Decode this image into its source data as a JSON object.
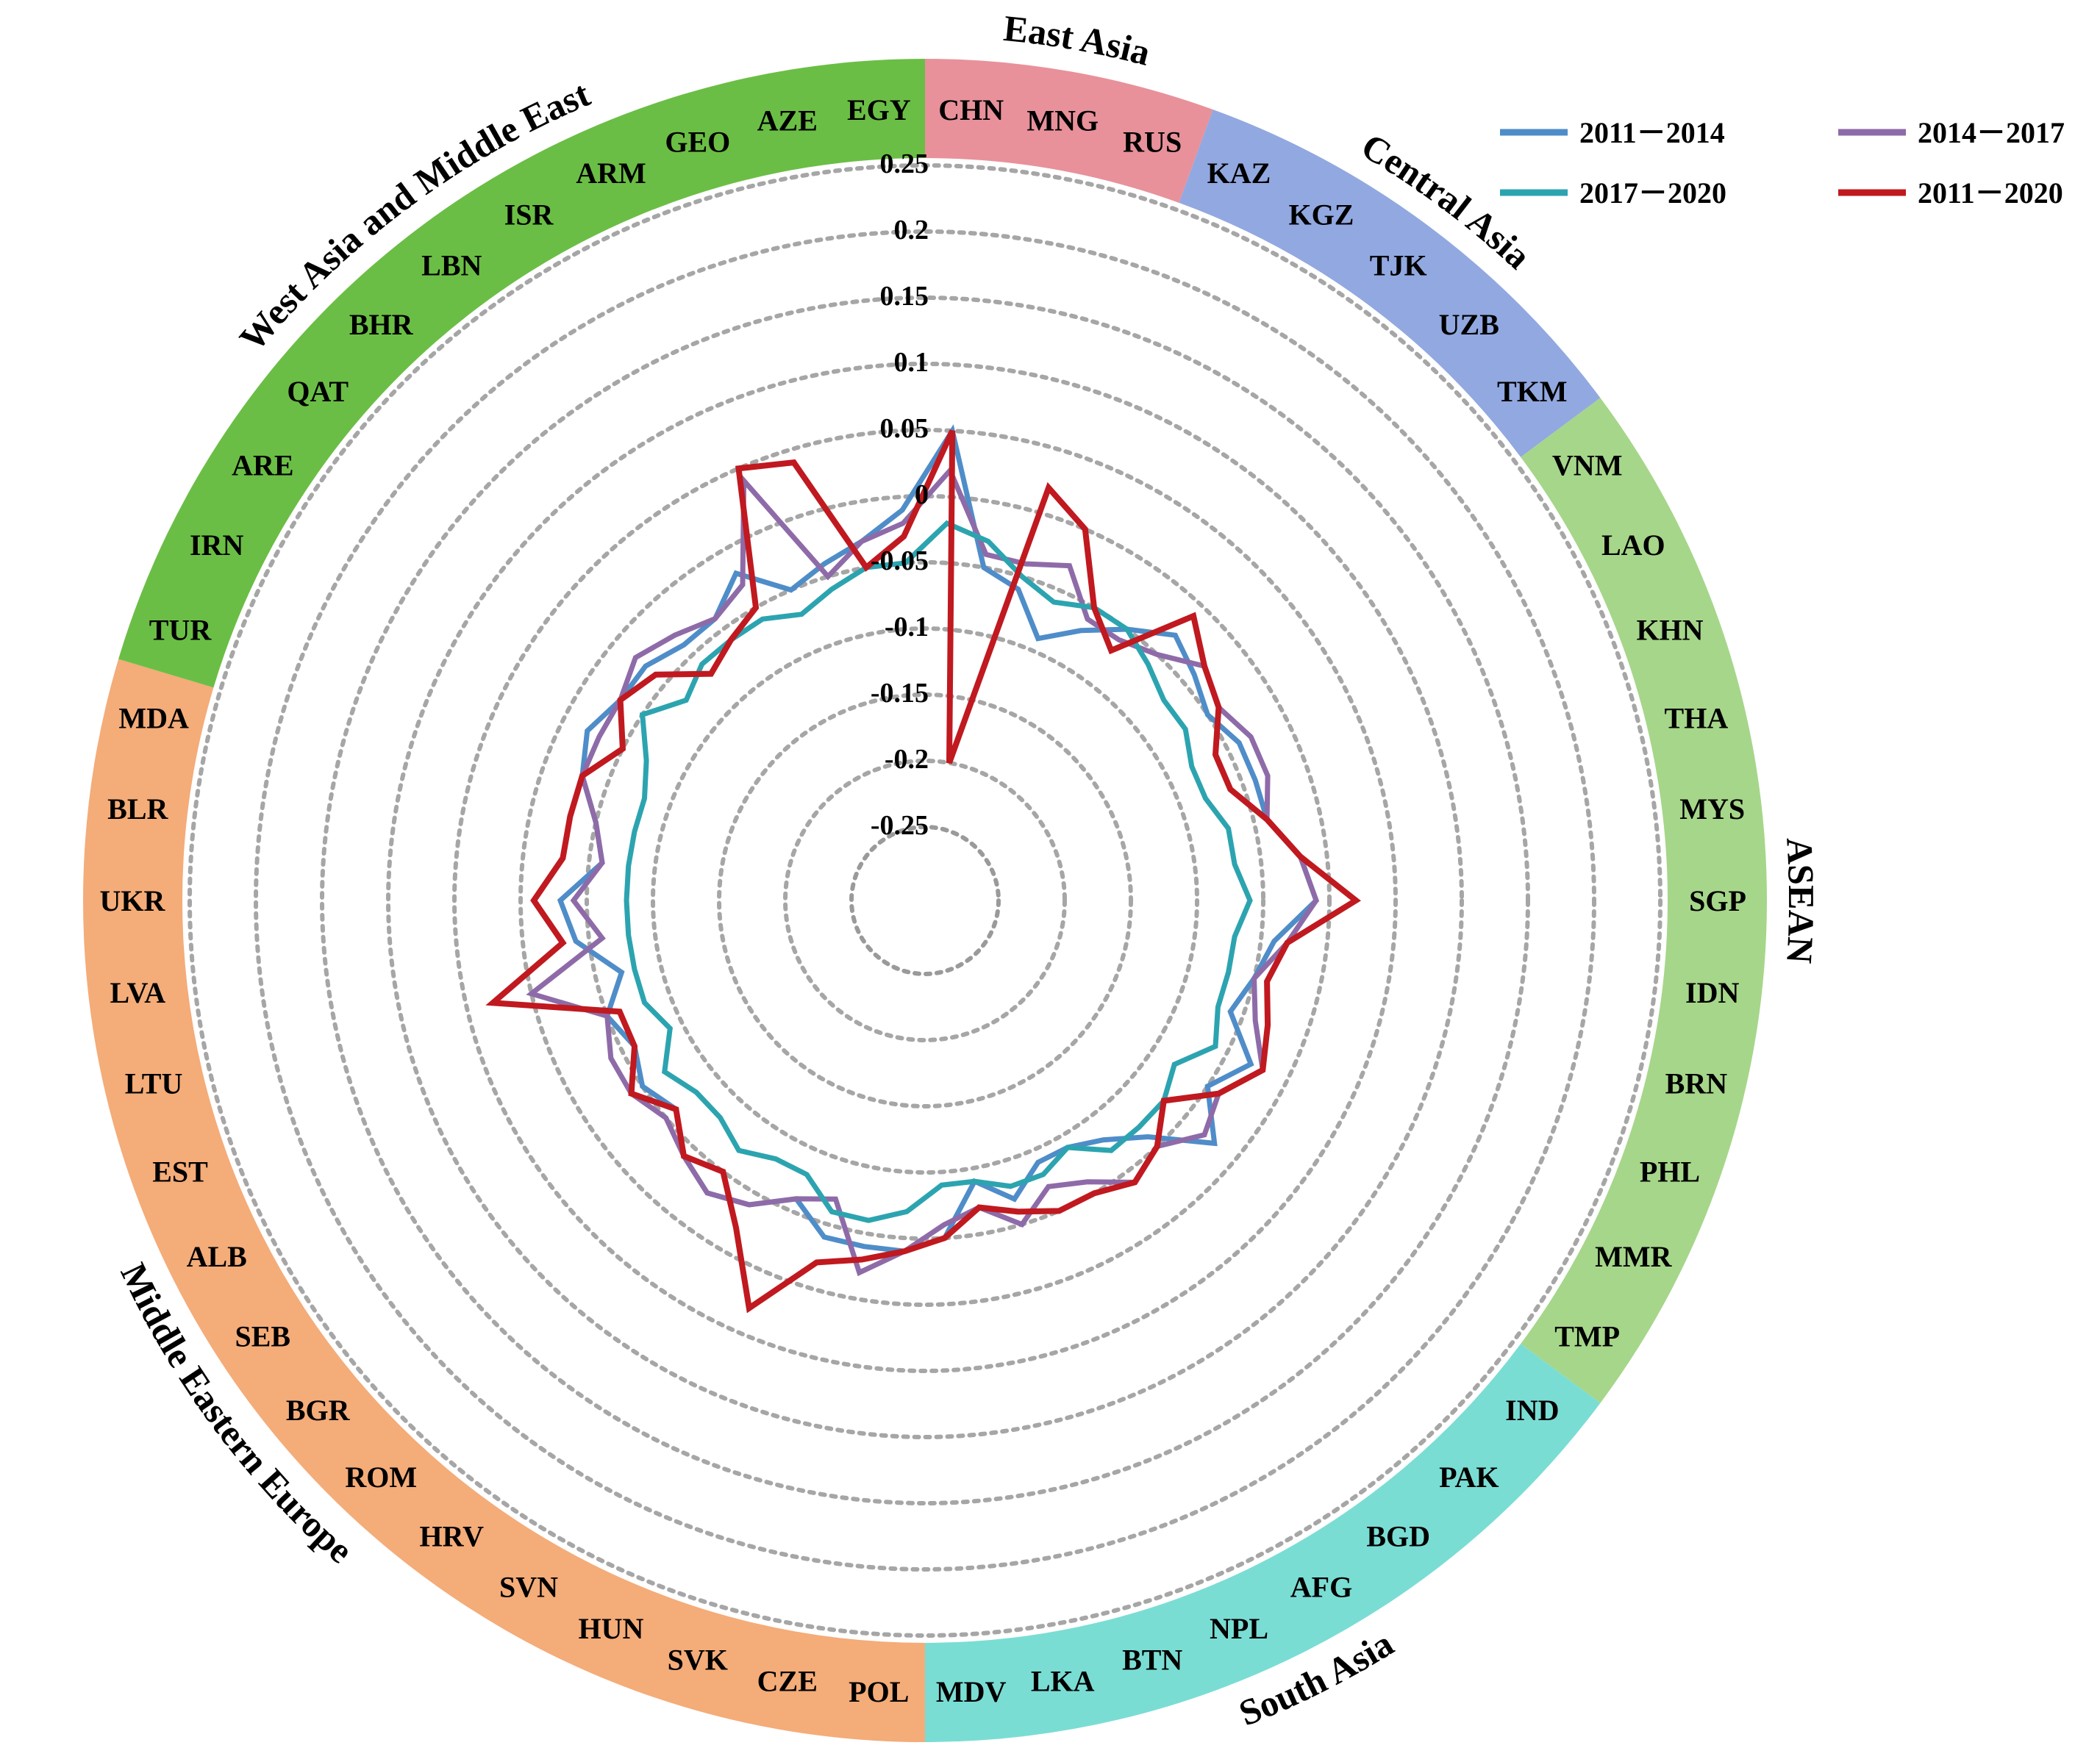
{
  "chart_data": {
    "type": "radar",
    "rlim": [
      -0.25,
      0.25
    ],
    "ticks": [
      0.25,
      0.2,
      0.15,
      0.1,
      0.05,
      0,
      -0.05,
      -0.1,
      -0.15,
      -0.2,
      -0.25
    ],
    "grid": "dotted",
    "legend_position": "top-right",
    "categories": [
      "CHN",
      "MNG",
      "RUS",
      "KAZ",
      "KGZ",
      "TJK",
      "UZB",
      "TKM",
      "VNM",
      "LAO",
      "KHN",
      "THA",
      "MYS",
      "SGP",
      "IDN",
      "BRN",
      "PHL",
      "MMR",
      "TMP",
      "IND",
      "PAK",
      "BGD",
      "AFG",
      "NPL",
      "BTN",
      "LKA",
      "MDV",
      "POL",
      "CZE",
      "SVK",
      "HUN",
      "SVN",
      "HRV",
      "ROM",
      "BGR",
      "SEB",
      "ALB",
      "EST",
      "LTU",
      "LVA",
      "UKR",
      "BLR",
      "MDA",
      "TUR",
      "IRN",
      "ARE",
      "QAT",
      "BHR",
      "LBN",
      "ISR",
      "ARM",
      "GEO",
      "AZE",
      "EGY"
    ],
    "regions": [
      {
        "name": "East Asia",
        "color": "#E8919A",
        "count": 3
      },
      {
        "name": "Central Asia",
        "color": "#92A8E0",
        "count": 5
      },
      {
        "name": "ASEAN",
        "color": "#A6D68A",
        "count": 11
      },
      {
        "name": "South Asia",
        "color": "#7ADDD4",
        "count": 8
      },
      {
        "name": "Middle Eastern Europe",
        "color": "#F4AC79",
        "count": 16
      },
      {
        "name": "West Asia and Middle East",
        "color": "#6BBE45",
        "count": 11
      }
    ],
    "series": [
      {
        "name": "2011－2014",
        "color": "#4F8DC9",
        "values": [
          0.05,
          -0.05,
          -0.06,
          -0.09,
          -0.07,
          -0.05,
          -0.03,
          -0.04,
          -0.05,
          -0.04,
          -0.04,
          -0.04,
          -0.02,
          -0.01,
          -0.04,
          -0.05,
          -0.06,
          -0.03,
          -0.05,
          -0.02,
          -0.06,
          -0.08,
          -0.09,
          -0.09,
          -0.07,
          -0.09,
          -0.05,
          -0.04,
          -0.04,
          -0.04,
          -0.06,
          -0.04,
          -0.03,
          -0.04,
          -0.06,
          -0.05,
          -0.06,
          -0.05,
          -0.07,
          -0.04,
          -0.03,
          -0.06,
          -0.05,
          -0.03,
          -0.02,
          -0.03,
          -0.03,
          -0.04,
          -0.04,
          -0.02,
          -0.05,
          -0.04,
          -0.03,
          -0.01
        ]
      },
      {
        "name": "2014－2017",
        "color": "#8E6BA8",
        "values": [
          0.02,
          -0.04,
          -0.04,
          -0.03,
          -0.06,
          -0.06,
          -0.05,
          -0.03,
          -0.04,
          -0.03,
          -0.03,
          -0.04,
          -0.02,
          -0.01,
          -0.03,
          -0.05,
          -0.04,
          -0.02,
          -0.04,
          -0.03,
          -0.05,
          -0.04,
          -0.06,
          -0.07,
          -0.05,
          -0.07,
          -0.06,
          -0.04,
          -0.02,
          -0.07,
          -0.06,
          -0.04,
          -0.03,
          -0.04,
          -0.05,
          -0.04,
          -0.04,
          -0.05,
          0.0,
          -0.06,
          -0.04,
          -0.06,
          -0.05,
          -0.03,
          -0.03,
          -0.03,
          -0.02,
          -0.03,
          -0.04,
          -0.03,
          0.04,
          -0.05,
          -0.03,
          -0.02
        ]
      },
      {
        "name": "2017－2020",
        "color": "#2CA4B0",
        "values": [
          -0.02,
          -0.03,
          -0.05,
          -0.06,
          -0.05,
          -0.05,
          -0.06,
          -0.07,
          -0.07,
          -0.08,
          -0.08,
          -0.07,
          -0.07,
          -0.06,
          -0.07,
          -0.07,
          -0.07,
          -0.06,
          -0.08,
          -0.07,
          -0.07,
          -0.07,
          -0.09,
          -0.08,
          -0.08,
          -0.09,
          -0.09,
          -0.07,
          -0.06,
          -0.06,
          -0.08,
          -0.08,
          -0.07,
          -0.08,
          -0.08,
          -0.07,
          -0.09,
          -0.08,
          -0.08,
          -0.08,
          -0.08,
          -0.08,
          -0.08,
          -0.08,
          -0.07,
          -0.05,
          -0.07,
          -0.06,
          -0.06,
          -0.06,
          -0.07,
          -0.06,
          -0.05,
          -0.05
        ]
      },
      {
        "name": "2011－2020",
        "color": "#C0191F",
        "values": [
          0.05,
          -0.2,
          0.02,
          0.0,
          -0.05,
          -0.07,
          -0.01,
          -0.03,
          -0.04,
          -0.06,
          -0.06,
          -0.04,
          -0.02,
          0.02,
          -0.03,
          -0.04,
          -0.03,
          -0.02,
          -0.04,
          -0.07,
          -0.05,
          -0.04,
          -0.05,
          -0.05,
          -0.06,
          -0.07,
          -0.05,
          -0.04,
          -0.03,
          -0.02,
          0.03,
          -0.02,
          -0.05,
          -0.04,
          -0.06,
          -0.04,
          -0.06,
          -0.06,
          0.03,
          -0.03,
          -0.01,
          -0.03,
          -0.03,
          -0.03,
          -0.05,
          -0.03,
          -0.04,
          -0.07,
          -0.06,
          -0.05,
          0.05,
          0.04,
          -0.05,
          -0.03
        ]
      }
    ]
  }
}
